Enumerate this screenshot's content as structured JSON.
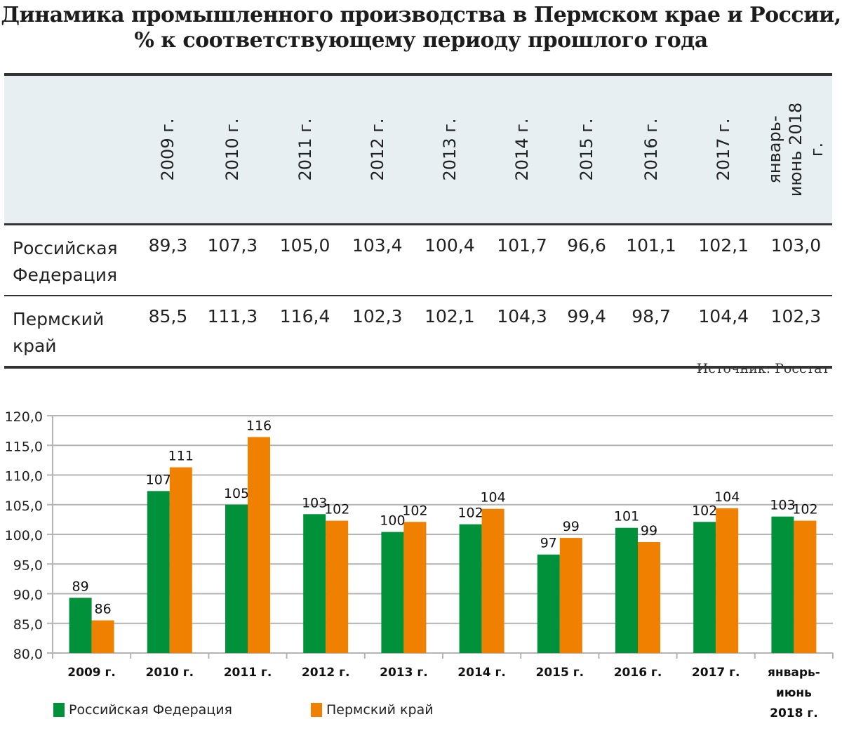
{
  "title": {
    "line1": "Динамика промышленного производства в Пермском крае и России,",
    "line2": "% к соответствующему периоду прошлого года"
  },
  "table": {
    "columns": [
      "2009 г.",
      "2010 г.",
      "2011 г.",
      "2012 г.",
      "2013 г.",
      "2014 г.",
      "2015 г.",
      "2016 г.",
      "2017 г.",
      "январь-июнь 2018 г."
    ],
    "rows": [
      {
        "label": "Российская Федерация",
        "values": [
          "89,3",
          "107,3",
          "105,0",
          "103,4",
          "100,4",
          "101,7",
          "96,6",
          "101,1",
          "102,1",
          "103,0"
        ]
      },
      {
        "label": "Пермский край",
        "values": [
          "85,5",
          "111,3",
          "116,4",
          "102,3",
          "102,1",
          "104,3",
          "99,4",
          "98,7",
          "104,4",
          "102,3"
        ]
      }
    ]
  },
  "source": "Источник: Росстат",
  "chart_data": {
    "type": "bar",
    "title": "",
    "xlabel": "",
    "ylabel": "",
    "categories": [
      "2009 г.",
      "2010 г.",
      "2011 г.",
      "2012 г.",
      "2013 г.",
      "2014 г.",
      "2015 г.",
      "2016 г.",
      "2017 г.",
      "январь-июнь 2018 г."
    ],
    "ylim": [
      80,
      120
    ],
    "yticks": [
      80,
      85,
      90,
      95,
      100,
      105,
      110,
      115,
      120
    ],
    "ytick_labels": [
      "80,0",
      "85,0",
      "90,0",
      "95,0",
      "100,0",
      "105,0",
      "110,0",
      "115,0",
      "120,0"
    ],
    "grid": true,
    "legend_position": "bottom-left",
    "series": [
      {
        "name": "Российская Федерация",
        "color": "#00913a",
        "values": [
          89.3,
          107.3,
          105.0,
          103.4,
          100.4,
          101.7,
          96.6,
          101.1,
          102.1,
          103.0
        ],
        "labels": [
          "89",
          "107",
          "105",
          "103",
          "100",
          "102",
          "97",
          "101",
          "102",
          "103"
        ]
      },
      {
        "name": "Пермский край",
        "color": "#ef8000",
        "values": [
          85.5,
          111.3,
          116.4,
          102.3,
          102.1,
          104.3,
          99.4,
          98.7,
          104.4,
          102.3
        ],
        "labels": [
          "86",
          "111",
          "116",
          "102",
          "102",
          "104",
          "99",
          "99",
          "104",
          "102"
        ]
      }
    ]
  }
}
